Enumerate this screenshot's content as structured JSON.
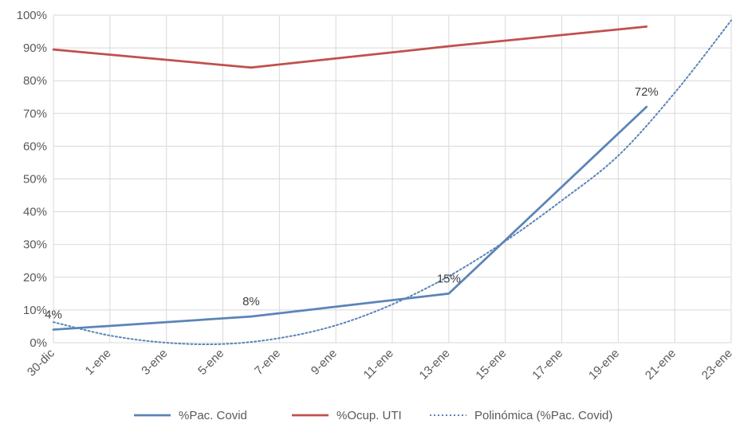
{
  "chart_data": {
    "type": "line",
    "x_labels": [
      "30-dic",
      "1-ene",
      "3-ene",
      "5-ene",
      "7-ene",
      "9-ene",
      "11-ene",
      "13-ene",
      "15-ene",
      "17-ene",
      "19-ene",
      "21-ene",
      "23-ene"
    ],
    "ylim": [
      0,
      100
    ],
    "y_ticks": [
      "0%",
      "10%",
      "20%",
      "30%",
      "40%",
      "50%",
      "60%",
      "70%",
      "80%",
      "90%",
      "100%"
    ],
    "grid": true,
    "legend_position": "bottom",
    "series": [
      {
        "name": "%Pac. Covid",
        "color": "#5B84B8",
        "style": "solid",
        "points": [
          {
            "x": "30-dic",
            "y": 4,
            "label": "4%"
          },
          {
            "x": "6-ene",
            "y": 8,
            "label": "8%"
          },
          {
            "x": "13-ene",
            "y": 15,
            "label": "15%"
          },
          {
            "x": "20-ene",
            "y": 72,
            "label": "72%"
          }
        ]
      },
      {
        "name": "%Ocup. UTI",
        "color": "#C0504D",
        "style": "solid",
        "points": [
          {
            "x": "30-dic",
            "y": 89.5
          },
          {
            "x": "6-ene",
            "y": 84
          },
          {
            "x": "13-ene",
            "y": 90.5
          },
          {
            "x": "20-ene",
            "y": 96.5
          }
        ]
      },
      {
        "name": "Polinómica (%Pac. Covid)",
        "color": "#5B84B8",
        "style": "dotted",
        "points": [
          {
            "x": "30-dic",
            "y": 6.3
          },
          {
            "x": "1-ene",
            "y": 2.2
          },
          {
            "x": "3-ene",
            "y": 0
          },
          {
            "x": "5-ene",
            "y": -0.4
          },
          {
            "x": "7-ene",
            "y": 1.4
          },
          {
            "x": "9-ene",
            "y": 5.3
          },
          {
            "x": "11-ene",
            "y": 11.7
          },
          {
            "x": "13-ene",
            "y": 20.3
          },
          {
            "x": "15-ene",
            "y": 31
          },
          {
            "x": "17-ene",
            "y": 43.4
          },
          {
            "x": "19-ene",
            "y": 57.1
          },
          {
            "x": "21-ene",
            "y": 76.3
          },
          {
            "x": "23-ene",
            "y": 98.4
          }
        ]
      }
    ]
  }
}
